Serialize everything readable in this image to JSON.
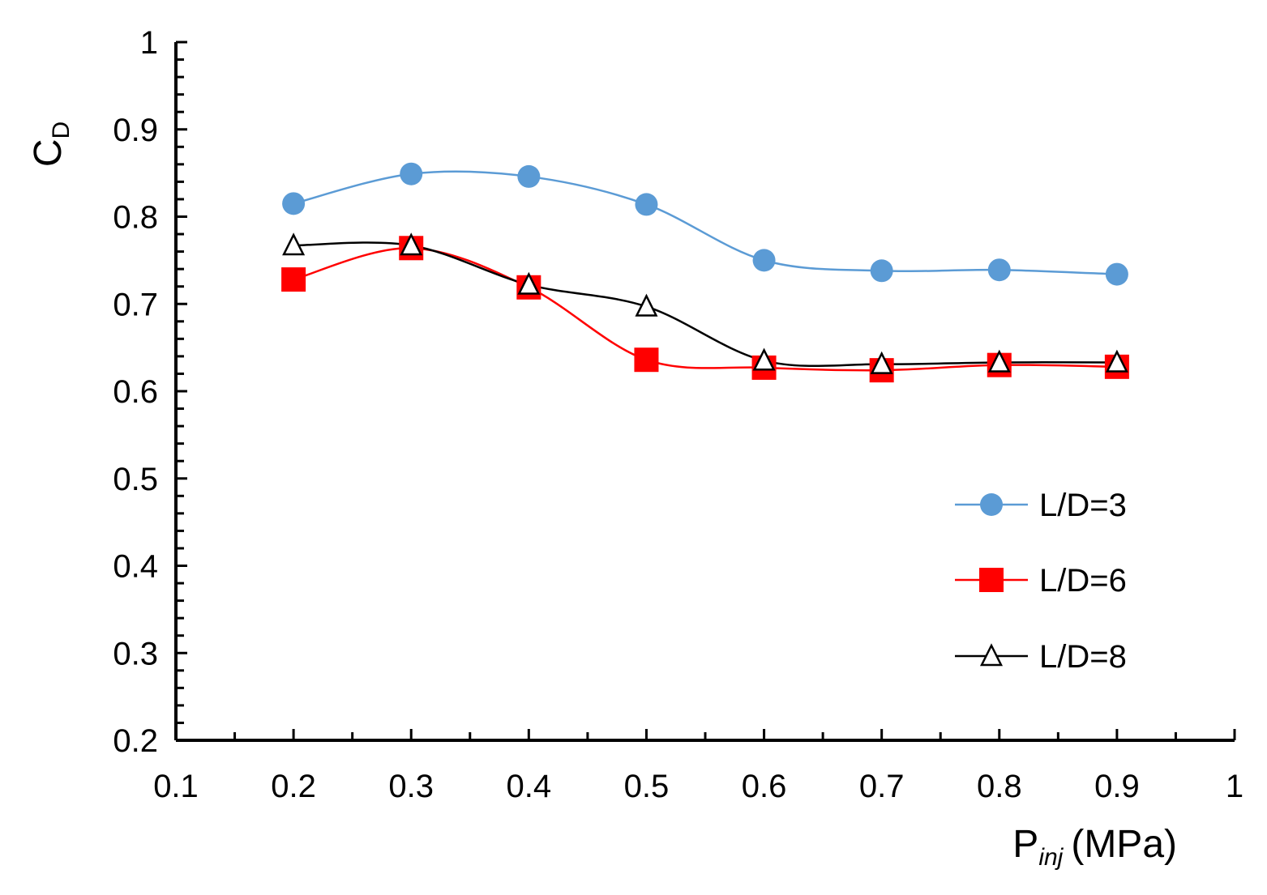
{
  "chart_data": {
    "type": "line",
    "title": "",
    "xlabel": {
      "main": "P",
      "sub": "inj",
      "unit": "(MPa)"
    },
    "ylabel": {
      "main": "C",
      "sub": "D"
    },
    "xlim": [
      0.1,
      1.0
    ],
    "ylim": [
      0.2,
      1.0
    ],
    "x_ticks": [
      0.1,
      0.2,
      0.3,
      0.4,
      0.5,
      0.6,
      0.7,
      0.8,
      0.9,
      1.0
    ],
    "x_tick_labels": [
      "0.1",
      "0.2",
      "0.3",
      "0.4",
      "0.5",
      "0.6",
      "0.7",
      "0.8",
      "0.9",
      "1"
    ],
    "y_ticks": [
      0.2,
      0.3,
      0.4,
      0.5,
      0.6,
      0.7,
      0.8,
      0.9,
      1.0
    ],
    "y_tick_labels": [
      "0.2",
      "0.3",
      "0.4",
      "0.5",
      "0.6",
      "0.7",
      "0.8",
      "0.9",
      "1"
    ],
    "grid": false,
    "legend_position": "right-middle",
    "x": [
      0.2,
      0.3,
      0.4,
      0.5,
      0.6,
      0.7,
      0.8,
      0.9
    ],
    "series": [
      {
        "name": "L/D=3",
        "color": "#5b9bd5",
        "marker": "circle",
        "values": [
          0.815,
          0.849,
          0.846,
          0.814,
          0.75,
          0.738,
          0.739,
          0.734
        ]
      },
      {
        "name": "L/D=6",
        "color": "#ff0000",
        "marker": "square",
        "values": [
          0.728,
          0.764,
          0.719,
          0.636,
          0.627,
          0.624,
          0.63,
          0.628
        ]
      },
      {
        "name": "L/D=8",
        "color": "#000000",
        "marker": "triangle-open",
        "values": [
          0.767,
          0.767,
          0.722,
          0.697,
          0.635,
          0.631,
          0.633,
          0.633
        ]
      }
    ]
  }
}
